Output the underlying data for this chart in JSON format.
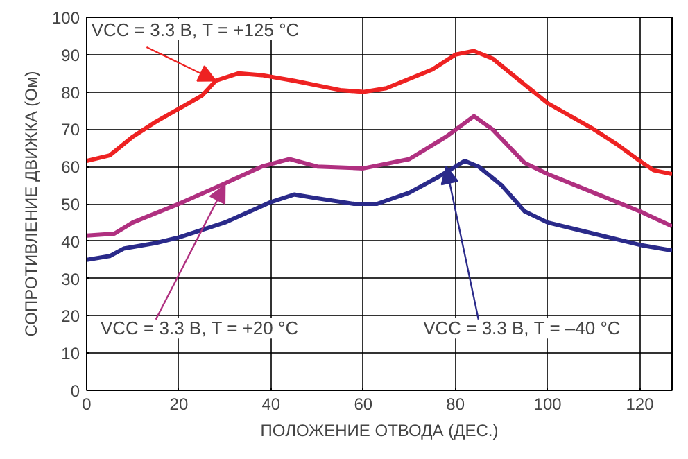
{
  "chart_data": {
    "type": "line",
    "xlabel": "ПОЛОЖЕНИЕ ОТВОДА (ДЕС.)",
    "ylabel": "СОПРОТИВЛЕНИЕ ДВИЖКА (Ом)",
    "xlim": [
      0,
      127
    ],
    "xticks": [
      0,
      20,
      40,
      60,
      80,
      100,
      120
    ],
    "ylim": [
      0,
      100
    ],
    "yticks": [
      0,
      10,
      20,
      30,
      40,
      50,
      60,
      70,
      80,
      90,
      100
    ],
    "grid": true,
    "line_style": "solid",
    "series": [
      {
        "color": "#ee2222",
        "x": [
          0,
          5,
          10,
          15,
          20,
          25,
          28,
          33,
          38,
          45,
          55,
          60,
          65,
          75,
          80,
          84,
          88,
          95,
          100,
          110,
          115,
          120,
          123,
          127
        ],
        "values": [
          61.5,
          63,
          68,
          72,
          75.5,
          79,
          83,
          85,
          84.5,
          83,
          80.5,
          80,
          81,
          86,
          90,
          91,
          89,
          82,
          77,
          70,
          66,
          61.5,
          59,
          58
        ]
      },
      {
        "color": "#b03080",
        "x": [
          0,
          6,
          10,
          20,
          30,
          38,
          44,
          50,
          60,
          70,
          78,
          84,
          88,
          95,
          100,
          110,
          120,
          127
        ],
        "values": [
          41.5,
          42,
          45,
          50,
          55.5,
          60,
          62,
          60,
          59.5,
          62,
          68,
          73.5,
          70,
          61,
          58,
          53,
          48,
          44
        ]
      },
      {
        "color": "#2a2a8a",
        "x": [
          0,
          5,
          8,
          15,
          20,
          30,
          40,
          45,
          50,
          58,
          63,
          70,
          76,
          80,
          82,
          85,
          90,
          95,
          100,
          110,
          120,
          127
        ],
        "values": [
          35,
          36,
          38,
          39.5,
          41,
          45,
          50.5,
          52.5,
          51.5,
          50,
          50,
          53,
          57,
          60,
          61.5,
          60,
          55,
          48,
          45,
          42,
          39,
          37.5
        ]
      }
    ],
    "annotations": [
      {
        "text": "VCC = 3.3 В, T = +125 °C",
        "x": 28,
        "y": 83
      },
      {
        "text": "VCC = 3.3 В, T = +20 °C",
        "x": 30,
        "y": 55
      },
      {
        "text": "VCC = 3.3 В, T = –40 °C",
        "x": 78,
        "y": 60
      }
    ]
  }
}
